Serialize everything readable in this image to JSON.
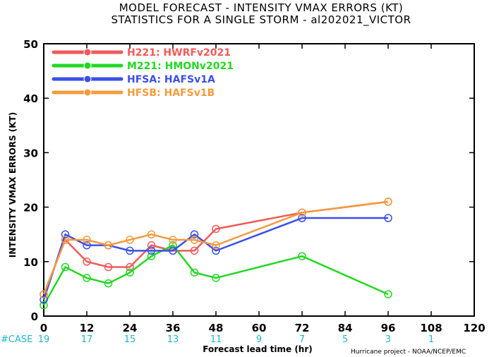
{
  "titles": {
    "line1": "MODEL FORECAST - INTENSITY VMAX ERRORS (KT)",
    "line2": "STATISTICS FOR A SINGLE STORM - al202021_VICTOR"
  },
  "case_label": "#CASE",
  "credit": "Hurricane project - NOAA/NCEP/EMC",
  "colors": {
    "H221": "#f05a5a",
    "M221": "#22d822",
    "HFSA": "#3b4fe8",
    "HFSB": "#f59a3c",
    "case": "#1fb6c6"
  },
  "chart_data": {
    "type": "line",
    "title": "MODEL FORECAST - INTENSITY VMAX ERRORS (KT)",
    "subtitle": "STATISTICS FOR A SINGLE STORM - al202021_VICTOR",
    "xlabel": "Forecast lead time (hr)",
    "ylabel": "INTENSITY VMAX ERRORS (KT)",
    "xlim": [
      0,
      120
    ],
    "ylim": [
      0,
      50
    ],
    "xticks": [
      "0",
      "12",
      "24",
      "36",
      "48",
      "60",
      "72",
      "84",
      "96",
      "108",
      "120"
    ],
    "yticks": [
      "0",
      "10",
      "20",
      "30",
      "40",
      "50"
    ],
    "grid": false,
    "legend_position": "top-left",
    "series": [
      {
        "key": "H221",
        "name": "H221: HWRFv2021",
        "x": [
          0,
          6,
          12,
          18,
          24,
          30,
          36,
          42,
          48,
          72,
          96
        ],
        "y": [
          4,
          14,
          10,
          9,
          9,
          13,
          12,
          12,
          16,
          19,
          21
        ]
      },
      {
        "key": "M221",
        "name": "M221: HMONv2021",
        "x": [
          0,
          6,
          12,
          18,
          24,
          30,
          36,
          42,
          48,
          72,
          96
        ],
        "y": [
          2,
          9,
          7,
          6,
          8,
          11,
          13,
          8,
          7,
          11,
          4
        ]
      },
      {
        "key": "HFSA",
        "name": "HFSA: HAFSv1A",
        "x": [
          0,
          6,
          12,
          18,
          24,
          30,
          36,
          42,
          48,
          72,
          96
        ],
        "y": [
          3,
          15,
          13,
          13,
          12,
          12,
          12,
          15,
          12,
          18,
          18
        ]
      },
      {
        "key": "HFSB",
        "name": "HFSB: HAFSv1B",
        "x": [
          0,
          6,
          12,
          18,
          24,
          30,
          36,
          42,
          48,
          72,
          96
        ],
        "y": [
          4,
          14,
          14,
          13,
          14,
          15,
          14,
          14,
          13,
          19,
          21
        ]
      }
    ],
    "cases": [
      {
        "x": 0,
        "n": "19"
      },
      {
        "x": 12,
        "n": "17"
      },
      {
        "x": 24,
        "n": "15"
      },
      {
        "x": 36,
        "n": "13"
      },
      {
        "x": 48,
        "n": "11"
      },
      {
        "x": 60,
        "n": "9"
      },
      {
        "x": 72,
        "n": "7"
      },
      {
        "x": 84,
        "n": "5"
      },
      {
        "x": 96,
        "n": "3"
      },
      {
        "x": 108,
        "n": "1"
      }
    ]
  }
}
